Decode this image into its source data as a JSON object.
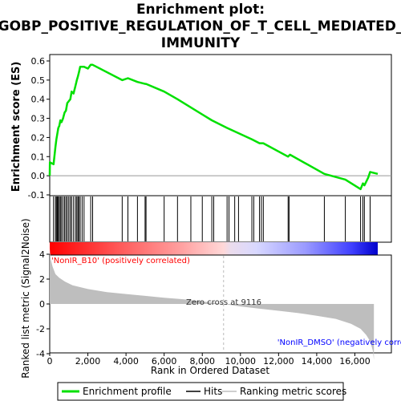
{
  "chart_data": {
    "type": "line",
    "title_lines": [
      "Enrichment plot:",
      "GOBP_POSITIVE_REGULATION_OF_T_CELL_MEDIATED_",
      "IMMUNITY"
    ],
    "es_panel": {
      "ylabel": "Enrichment score (ES)",
      "ylim": [
        -0.1,
        0.6
      ],
      "yticks": [
        "-0.1",
        "0.0",
        "0.1",
        "0.2",
        "0.3",
        "0.4",
        "0.5",
        "0.6"
      ],
      "ytick_values": [
        -0.1,
        0.0,
        0.1,
        0.2,
        0.3,
        0.4,
        0.5,
        0.6
      ],
      "series": [
        {
          "name": "Enrichment profile",
          "color": "#00e000",
          "x": [
            0,
            10,
            200,
            300,
            350,
            400,
            450,
            500,
            560,
            620,
            700,
            780,
            850,
            920,
            1000,
            1080,
            1150,
            1250,
            1350,
            1420,
            1480,
            1530,
            1600,
            1700,
            1800,
            2000,
            2150,
            2250,
            3800,
            4100,
            4600,
            5000,
            5050,
            6000,
            6700,
            8500,
            9300,
            10600,
            11000,
            11200,
            12500,
            12600,
            14400,
            15500,
            16300,
            16420,
            16500,
            16700,
            16800,
            17200
          ],
          "y": [
            0.0,
            0.07,
            0.06,
            0.15,
            0.19,
            0.22,
            0.25,
            0.26,
            0.29,
            0.28,
            0.3,
            0.33,
            0.34,
            0.38,
            0.39,
            0.4,
            0.44,
            0.43,
            0.47,
            0.5,
            0.52,
            0.54,
            0.57,
            0.57,
            0.57,
            0.56,
            0.58,
            0.58,
            0.5,
            0.51,
            0.49,
            0.48,
            0.48,
            0.44,
            0.4,
            0.29,
            0.25,
            0.19,
            0.17,
            0.17,
            0.1,
            0.11,
            0.01,
            -0.02,
            -0.07,
            -0.04,
            -0.05,
            -0.01,
            0.02,
            0.01
          ]
        }
      ]
    },
    "hits": {
      "name": "Hits",
      "x": [
        200,
        300,
        350,
        400,
        450,
        500,
        560,
        620,
        700,
        780,
        850,
        920,
        1000,
        1080,
        1150,
        1250,
        1350,
        1420,
        1480,
        1530,
        1600,
        1700,
        1800,
        2150,
        2250,
        3800,
        4100,
        4600,
        5000,
        5050,
        6000,
        6700,
        7400,
        8000,
        8500,
        8600,
        9300,
        9400,
        9700,
        9900,
        10600,
        10700,
        11000,
        11100,
        11200,
        12500,
        12550,
        14400,
        15500,
        16300,
        16420,
        16500,
        16800
      ]
    },
    "ranking_panel": {
      "ylabel": "Ranked list metric (Signal2Noise)",
      "ylim": [
        -5,
        5
      ],
      "yticks": [
        "4",
        "2",
        "0",
        "-2",
        "-4"
      ],
      "ytick_values": [
        4,
        2,
        0,
        -2,
        -4
      ],
      "zero_cross_label": "Zero cross at 9116",
      "zero_cross": 9116,
      "pos_label": "'NonIR_B10' (positively correlated)",
      "neg_label": "'NonIR_DMSO' (negatively correlated)",
      "curve_x": [
        0,
        50,
        150,
        300,
        500,
        800,
        1200,
        2000,
        3000,
        4000,
        5000,
        6000,
        7000,
        8000,
        9116,
        10000,
        11000,
        12000,
        13000,
        14000,
        15000,
        15800,
        16300,
        16600,
        16800,
        16950,
        17000
      ],
      "curve_y": [
        4.5,
        3.6,
        3.0,
        2.4,
        2.1,
        1.8,
        1.5,
        1.2,
        0.95,
        0.8,
        0.65,
        0.5,
        0.38,
        0.2,
        0.0,
        -0.2,
        -0.38,
        -0.55,
        -0.72,
        -0.95,
        -1.2,
        -1.6,
        -2.0,
        -2.5,
        -3.0,
        -3.8,
        -4.5
      ]
    },
    "xlabel": "Rank in Ordered Dataset",
    "xlim": [
      0,
      17200
    ],
    "xticks": [
      "0",
      "2,000",
      "4,000",
      "6,000",
      "8,000",
      "10,000",
      "12,000",
      "14,000",
      "16,000"
    ],
    "xtick_values": [
      0,
      2000,
      4000,
      6000,
      8000,
      10000,
      12000,
      14000,
      16000
    ],
    "legend": {
      "placement": "bottom",
      "entries": [
        "Enrichment profile",
        "Hits",
        "Ranking metric scores"
      ]
    },
    "colors": {
      "profile": "#00e000",
      "hits": "#000000",
      "ranking_fill": "#bebebe",
      "pos_label": "#ff0000",
      "neg_label": "#0000ff",
      "zero_line": "#bbbbbb"
    }
  }
}
